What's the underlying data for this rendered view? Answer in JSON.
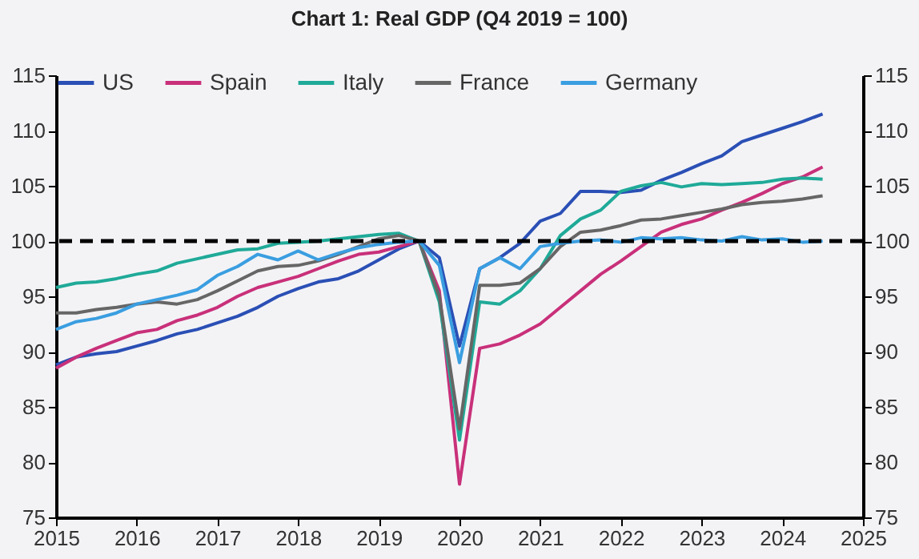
{
  "chart_data": {
    "type": "line",
    "title": "Chart 1: Real GDP (Q4 2019 = 100)",
    "x": [
      2015.0,
      2015.25,
      2015.5,
      2015.75,
      2016.0,
      2016.25,
      2016.5,
      2016.75,
      2017.0,
      2017.25,
      2017.5,
      2017.75,
      2018.0,
      2018.25,
      2018.5,
      2018.75,
      2019.0,
      2019.25,
      2019.5,
      2019.75,
      2020.0,
      2020.25,
      2020.5,
      2020.75,
      2021.0,
      2021.25,
      2021.5,
      2021.75,
      2022.0,
      2022.25,
      2022.5,
      2022.75,
      2023.0,
      2023.25,
      2023.5,
      2023.75,
      2024.0,
      2024.25,
      2024.5
    ],
    "series": [
      {
        "name": "US",
        "color": "#2a4fb5",
        "values": [
          88.8,
          89.5,
          89.8,
          90.0,
          90.5,
          91.0,
          91.6,
          92.0,
          92.6,
          93.2,
          94.0,
          95.0,
          95.7,
          96.3,
          96.6,
          97.3,
          98.3,
          99.3,
          100,
          98.5,
          90.5,
          97.5,
          98.5,
          99.8,
          101.8,
          102.5,
          104.5,
          104.5,
          104.4,
          104.6,
          105.5,
          106.2,
          107.0,
          107.7,
          109.0,
          109.6,
          110.2,
          110.8,
          111.5
        ]
      },
      {
        "name": "Spain",
        "color": "#c9307a",
        "values": [
          88.5,
          89.5,
          90.3,
          91.0,
          91.7,
          92.0,
          92.8,
          93.3,
          94.0,
          95.0,
          95.8,
          96.3,
          96.8,
          97.5,
          98.2,
          98.8,
          99.0,
          99.5,
          100,
          95.5,
          78,
          90.3,
          90.7,
          91.5,
          92.5,
          94.0,
          95.5,
          97.0,
          98.2,
          99.5,
          100.8,
          101.5,
          102.0,
          102.8,
          103.5,
          104.3,
          105.2,
          105.8,
          106.7
        ]
      },
      {
        "name": "Italy",
        "color": "#1faa98",
        "values": [
          95.8,
          96.2,
          96.3,
          96.6,
          97.0,
          97.3,
          98.0,
          98.4,
          98.8,
          99.2,
          99.3,
          99.8,
          99.9,
          100.0,
          100.2,
          100.4,
          100.6,
          100.7,
          100,
          94.5,
          82,
          94.5,
          94.3,
          95.5,
          97.5,
          100.5,
          102.0,
          102.8,
          104.5,
          105.0,
          105.3,
          104.9,
          105.2,
          105.1,
          105.2,
          105.3,
          105.6,
          105.7,
          105.6
        ]
      },
      {
        "name": "France",
        "color": "#666666",
        "values": [
          93.5,
          93.5,
          93.8,
          94.0,
          94.3,
          94.5,
          94.3,
          94.7,
          95.5,
          96.4,
          97.3,
          97.7,
          97.8,
          98.2,
          98.8,
          99.5,
          100.2,
          100.5,
          100,
          95,
          83,
          96.0,
          96.0,
          96.2,
          97.5,
          99.5,
          100.8,
          101.0,
          101.4,
          101.9,
          102.0,
          102.3,
          102.6,
          102.9,
          103.3,
          103.5,
          103.6,
          103.8,
          104.1
        ]
      },
      {
        "name": "Germany",
        "color": "#3a9ee0",
        "values": [
          92,
          92.7,
          93.0,
          93.5,
          94.3,
          94.7,
          95.1,
          95.6,
          96.9,
          97.7,
          98.8,
          98.3,
          99.1,
          98.3,
          98.9,
          99.4,
          99.7,
          99.9,
          100,
          97.8,
          89,
          97.5,
          98.5,
          97.5,
          99.5,
          99.8,
          100.0,
          100.1,
          99.9,
          100.3,
          100.2,
          100.3,
          100.1,
          100.0,
          100.4,
          100.1,
          100.2,
          99.9,
          100.0
        ]
      }
    ],
    "xlim": [
      2015,
      2025
    ],
    "xticks": [
      2015,
      2016,
      2017,
      2018,
      2019,
      2020,
      2021,
      2022,
      2023,
      2024,
      2025
    ],
    "ylim": [
      75,
      115
    ],
    "yticks": [
      75,
      80,
      85,
      90,
      95,
      100,
      105,
      110,
      115
    ],
    "y2lim": [
      75,
      115
    ],
    "y2ticks": [
      75,
      80,
      85,
      90,
      95,
      100,
      105,
      110,
      115
    ],
    "ref_lines": [
      {
        "axis": "y",
        "value": 100,
        "color": "#000000",
        "line_style": "dashed"
      }
    ],
    "legend": "top",
    "grid": false,
    "marker": "none",
    "line_style": "solid"
  }
}
